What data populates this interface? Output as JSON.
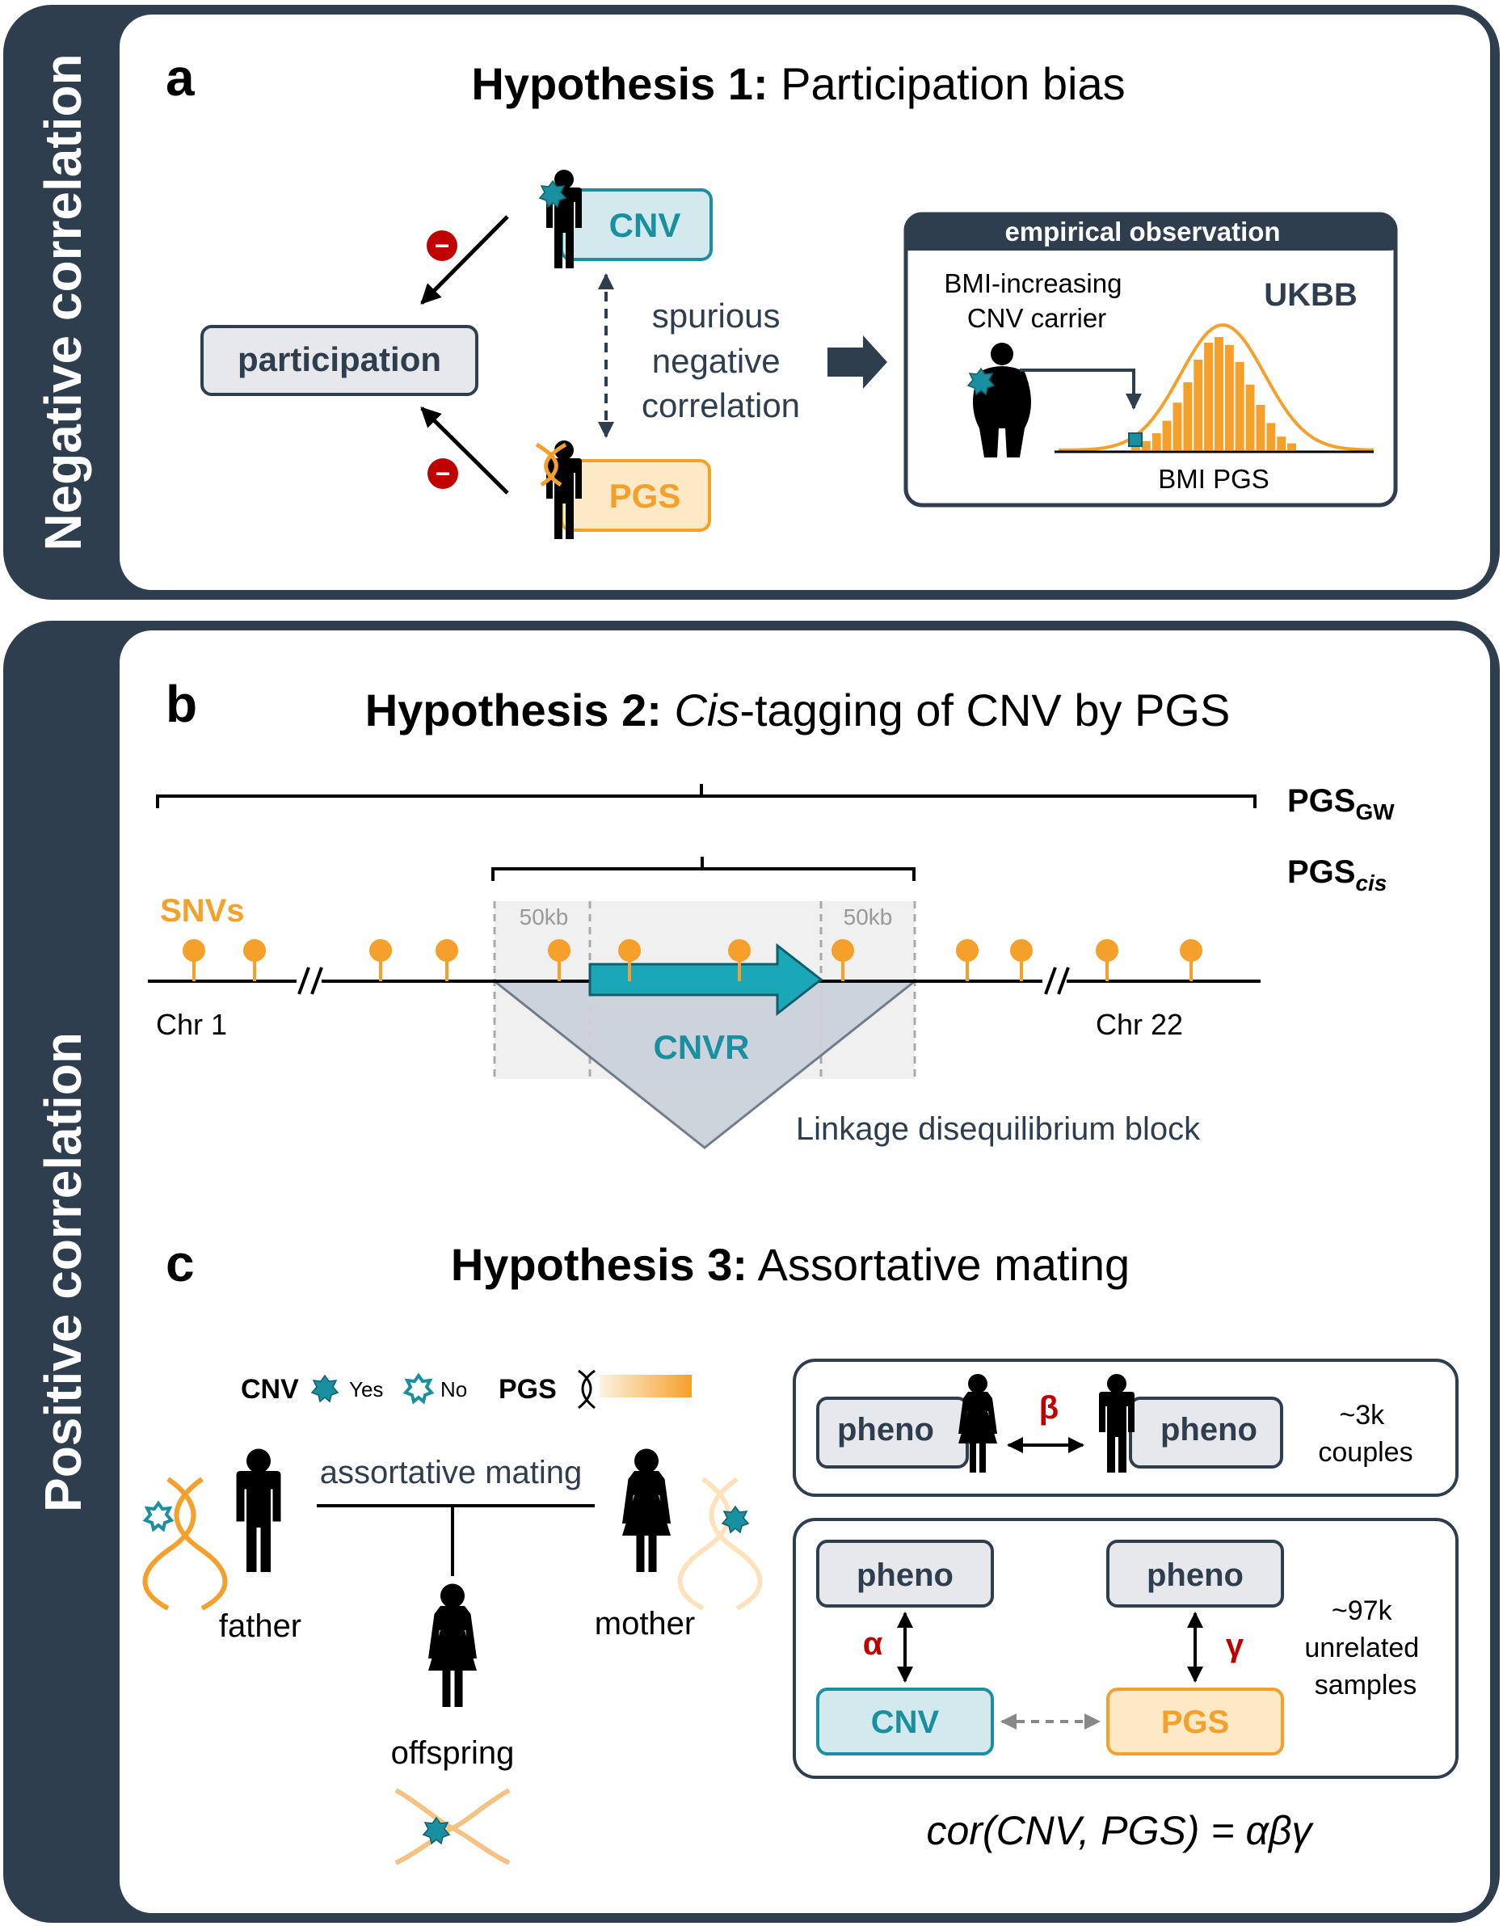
{
  "sidebars": {
    "top": "Negative correlation",
    "bottom": "Positive correlation"
  },
  "colors": {
    "dark": "#2f3e4e",
    "teal": "#1a8fa0",
    "teal_fill": "#d3e9ee",
    "orange": "#f4a02a",
    "orange_fill": "#fde9c6",
    "red": "#c00000",
    "grey_box": "#e6e8ec"
  },
  "panel_a": {
    "letter": "a",
    "title_bold": "Hypothesis 1:",
    "title_rest": " Participation bias",
    "cnv_label": "CNV",
    "pgs_label": "PGS",
    "participation_label": "participation",
    "minus_sign": "−",
    "spurious_lines": [
      "spurious",
      "negative",
      "correlation"
    ],
    "empirical_title": "empirical observation",
    "ukbb": "UKBB",
    "carrier_lines": [
      "BMI-increasing",
      "CNV carrier"
    ],
    "pgs_axis": "BMI PGS",
    "histogram": [
      0.04,
      0.08,
      0.15,
      0.26,
      0.42,
      0.6,
      0.8,
      0.95,
      1.0,
      0.93,
      0.78,
      0.58,
      0.4,
      0.24,
      0.12,
      0.06
    ]
  },
  "panel_b": {
    "letter": "b",
    "title_bold": "Hypothesis 2:",
    "title_italic": "Cis",
    "title_rest": "-tagging of CNV by PGS",
    "pgs_gw_main": "PGS",
    "pgs_gw_sub": "GW",
    "pgs_cis_main": "PGS",
    "pgs_cis_sub": "cis",
    "snvs": "SNVs",
    "flank_left": "50kb",
    "flank_right": "50kb",
    "chr_left": "Chr 1",
    "chr_right": "Chr 22",
    "cnvr": "CNVR",
    "ld_block": "Linkage disequilibrium block"
  },
  "panel_c": {
    "letter": "c",
    "title_bold": "Hypothesis 3:",
    "title_rest": " Assortative mating",
    "legend_cnv": "CNV",
    "legend_yes": "Yes",
    "legend_no": "No",
    "legend_pgs": "PGS",
    "assortative": "assortative mating",
    "father": "father",
    "mother": "mother",
    "offspring": "offspring",
    "pheno": "pheno",
    "beta": "β",
    "alpha": "α",
    "gamma": "γ",
    "cnv_box": "CNV",
    "pgs_box": "PGS",
    "couples_lines": [
      "~3k",
      "couples"
    ],
    "unrelated_lines": [
      "~97k",
      "unrelated",
      "samples"
    ],
    "formula": "cor(CNV, PGS) = αβγ"
  }
}
